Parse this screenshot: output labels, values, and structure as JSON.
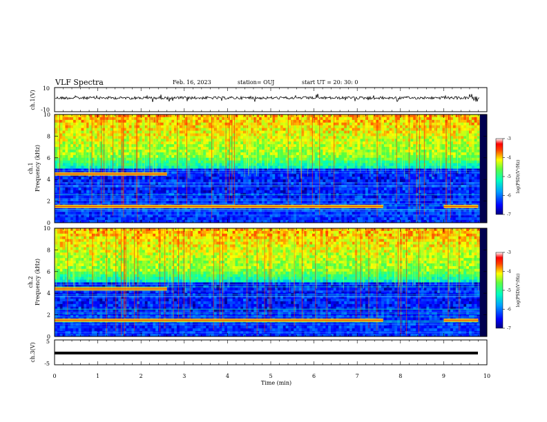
{
  "header": {
    "title": "VLF Spectra",
    "date": "Feb. 16, 2023",
    "station": "station= OUJ",
    "start": "start  UT =   20: 30: 0"
  },
  "chart_data": [
    {
      "type": "line",
      "name": "ch1-waveform",
      "ylabel": "ch.1(V)",
      "ylim": [
        -10,
        10
      ],
      "ytick_labels": [
        "10",
        "-10"
      ],
      "xlim": [
        0,
        10
      ],
      "description_level": 0
    },
    {
      "type": "heatmap",
      "name": "ch1-spectrogram",
      "ylabel": "ch.1\nFrequency (kHz)",
      "ylim": [
        0,
        10
      ],
      "yticks": [
        "0",
        "2",
        "4",
        "6",
        "8",
        "10"
      ],
      "xlim": [
        0,
        10
      ],
      "colorbar": {
        "label": "log(PSD)(V²/Hz)",
        "min": -7,
        "max": -3,
        "ticks": [
          "-3",
          "-4",
          "-5",
          "-6",
          "-7"
        ]
      },
      "features": [
        {
          "kind": "band",
          "freq_khz": 1.5,
          "t_start_min": 0,
          "t_end_min": 7.6
        },
        {
          "kind": "band",
          "freq_khz": 1.5,
          "t_start_min": 9.0,
          "t_end_min": 9.8
        },
        {
          "kind": "band",
          "freq_khz": 4.5,
          "t_start_min": 0,
          "t_end_min": 2.6
        }
      ]
    },
    {
      "type": "heatmap",
      "name": "ch2-spectrogram",
      "ylabel": "ch.2\nFrequency (kHz)",
      "ylim": [
        0,
        10
      ],
      "yticks": [
        "0",
        "2",
        "4",
        "6",
        "8",
        "10"
      ],
      "xlim": [
        0,
        10
      ],
      "colorbar": {
        "label": "log(PSD)(V²/Hz)",
        "min": -7,
        "max": -3,
        "ticks": [
          "-3",
          "-4",
          "-5",
          "-6",
          "-7"
        ]
      },
      "features": [
        {
          "kind": "band",
          "freq_khz": 1.5,
          "t_start_min": 0,
          "t_end_min": 7.6
        },
        {
          "kind": "band",
          "freq_khz": 1.5,
          "t_start_min": 9.0,
          "t_end_min": 9.8
        },
        {
          "kind": "band",
          "freq_khz": 4.4,
          "t_start_min": 0,
          "t_end_min": 2.6
        }
      ]
    },
    {
      "type": "line",
      "name": "ch3-waveform",
      "ylabel": "ch.3(V)",
      "ylim": [
        -5,
        5
      ],
      "ytick_labels": [
        "5",
        "-5"
      ],
      "xlim": [
        0,
        10
      ],
      "constant_value": -1
    }
  ],
  "xaxis": {
    "label": "Time  (min)",
    "ticks": [
      "0",
      "1",
      "2",
      "3",
      "4",
      "5",
      "6",
      "7",
      "8",
      "9",
      "10"
    ],
    "range": [
      0,
      10
    ],
    "data_end": 9.83
  }
}
